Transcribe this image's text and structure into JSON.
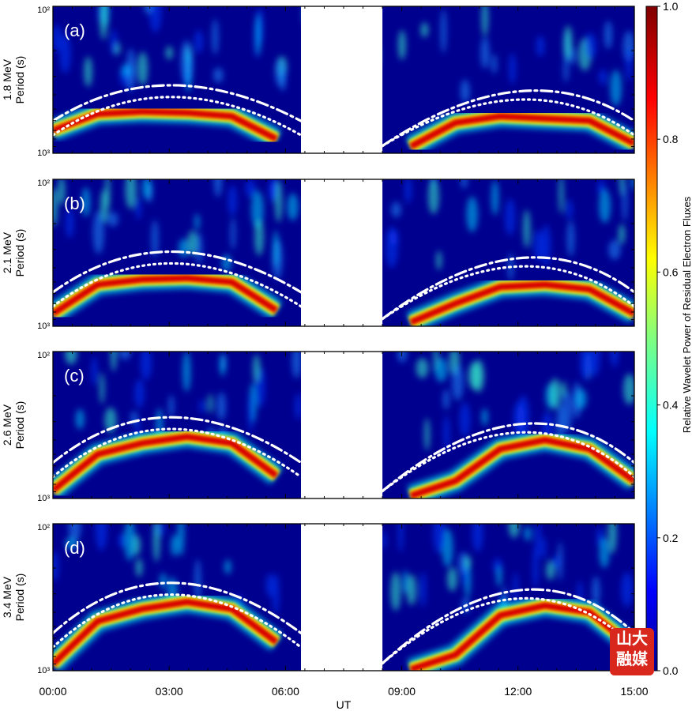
{
  "chart_data": {
    "type": "heatmap",
    "x_axis": {
      "label": "UT",
      "tick_labels": [
        "00:00",
        "03:00",
        "06:00",
        "09:00",
        "12:00",
        "15:00"
      ],
      "tick_hours": [
        0,
        3,
        6,
        9,
        12,
        15
      ],
      "range_hours": [
        0,
        15
      ],
      "data_gap_hours": [
        6.4,
        8.5
      ]
    },
    "y_axis": {
      "scale": "log",
      "range_s": [
        1000,
        100
      ],
      "tick_labels": [
        "10²",
        "10³"
      ]
    },
    "colorbar": {
      "label": "Relative Wavelet Power of Residual Electron Fluxes",
      "range": [
        0,
        1
      ],
      "tick_labels": [
        "0.0",
        "0.2",
        "0.4",
        "0.6",
        "0.8",
        "1.0"
      ],
      "colormap": "jet"
    },
    "panels": [
      {
        "tag": "(a)",
        "ylabel": "1.8 MeV",
        "ylabel2": "Period (s)",
        "ridge_period_s": [
          700,
          540,
          520,
          530,
          560,
          800,
          0,
          0,
          900,
          620,
          560,
          580,
          600,
          860
        ]
      },
      {
        "tag": "(b)",
        "ylabel": "2.1 MeV",
        "ylabel2": "Period (s)",
        "ridge_period_s": [
          820,
          520,
          480,
          470,
          500,
          780,
          0,
          0,
          940,
          700,
          540,
          520,
          560,
          820
        ]
      },
      {
        "tag": "(c)",
        "ylabel": "2.6 MeV",
        "ylabel2": "Period (s)",
        "ridge_period_s": [
          880,
          500,
          420,
          380,
          420,
          700,
          0,
          0,
          960,
          760,
          460,
          400,
          460,
          760
        ]
      },
      {
        "tag": "(d)",
        "ylabel": "3.4 MeV",
        "ylabel2": "Period (s)",
        "ridge_period_s": [
          900,
          460,
          380,
          340,
          380,
          640,
          0,
          0,
          980,
          780,
          420,
          360,
          400,
          700
        ]
      }
    ],
    "overlay_curves": [
      {
        "style": "dash-dot",
        "color": "#ffffff"
      },
      {
        "style": "dotted",
        "color": "#ffffff"
      }
    ],
    "grid": false
  },
  "logo": {
    "line1": "山大",
    "line2": "融媒"
  }
}
